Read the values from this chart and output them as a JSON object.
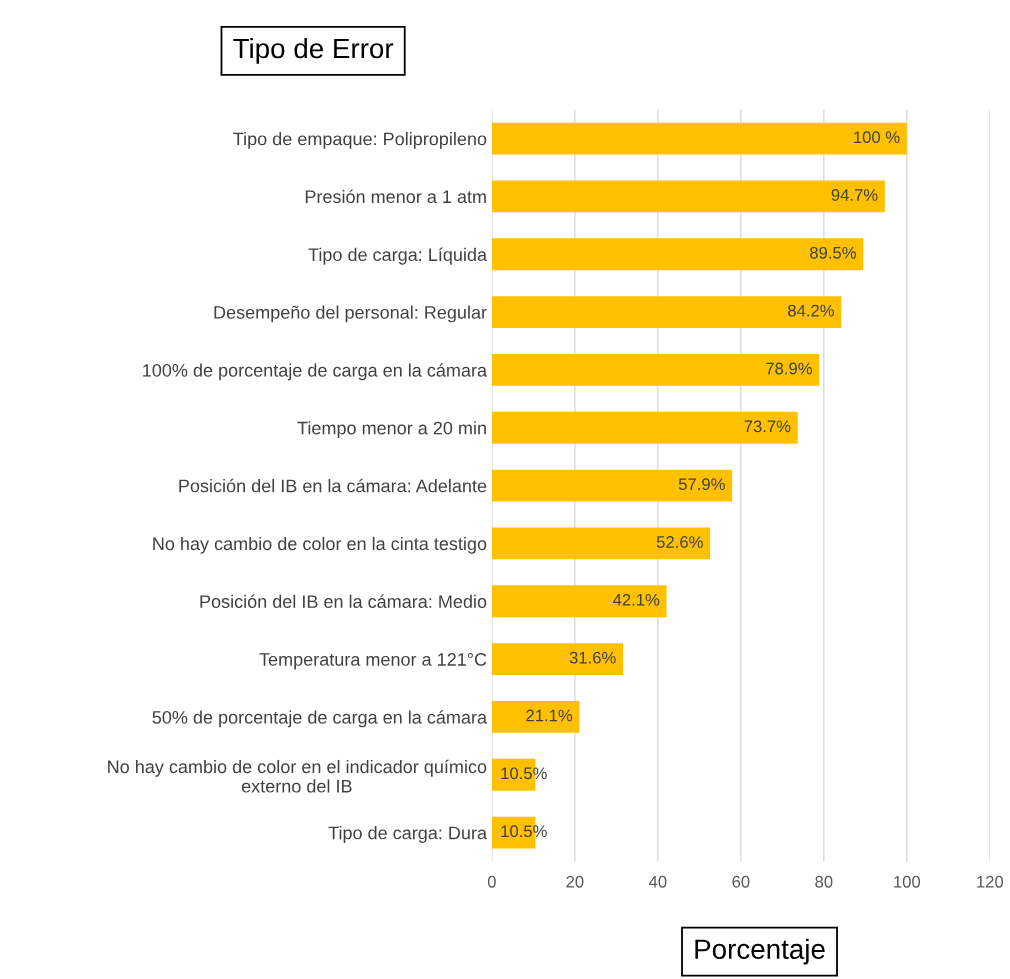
{
  "chart_data": {
    "type": "bar",
    "orientation": "horizontal",
    "ylabel": "Tipo de Error",
    "xlabel": "Porcentaje",
    "categories": [
      "Tipo de empaque: Polipropileno",
      "Presión menor a 1 atm",
      "Tipo de carga: Líquida",
      "Desempeño del personal: Regular",
      "100% de porcentaje de carga en la cámara",
      "Tiempo menor a 20 min",
      "Posición del IB en la cámara: Adelante",
      "No hay cambio de color en la cinta testigo",
      "Posición del IB en la cámara: Medio",
      "Temperatura menor a 121°C",
      "50% de porcentaje de carga en la cámara",
      "No hay cambio de color en el indicador químico\nexterno del IB",
      "Tipo de carga: Dura"
    ],
    "values": [
      100,
      94.7,
      89.5,
      84.2,
      78.9,
      73.7,
      57.9,
      52.6,
      42.1,
      31.6,
      21.1,
      10.5,
      10.5
    ],
    "value_labels": [
      "100 %",
      "94.7%",
      "89.5%",
      "84.2%",
      "78.9%",
      "73.7%",
      "57.9%",
      "52.6%",
      "42.1%",
      "31.6%",
      "21.1%",
      "10.5%",
      "10.5%"
    ],
    "color": "#ffc000",
    "xlim": [
      0,
      120
    ],
    "xticks": [
      0,
      20,
      40,
      60,
      80,
      100,
      120
    ],
    "grid": "x"
  }
}
